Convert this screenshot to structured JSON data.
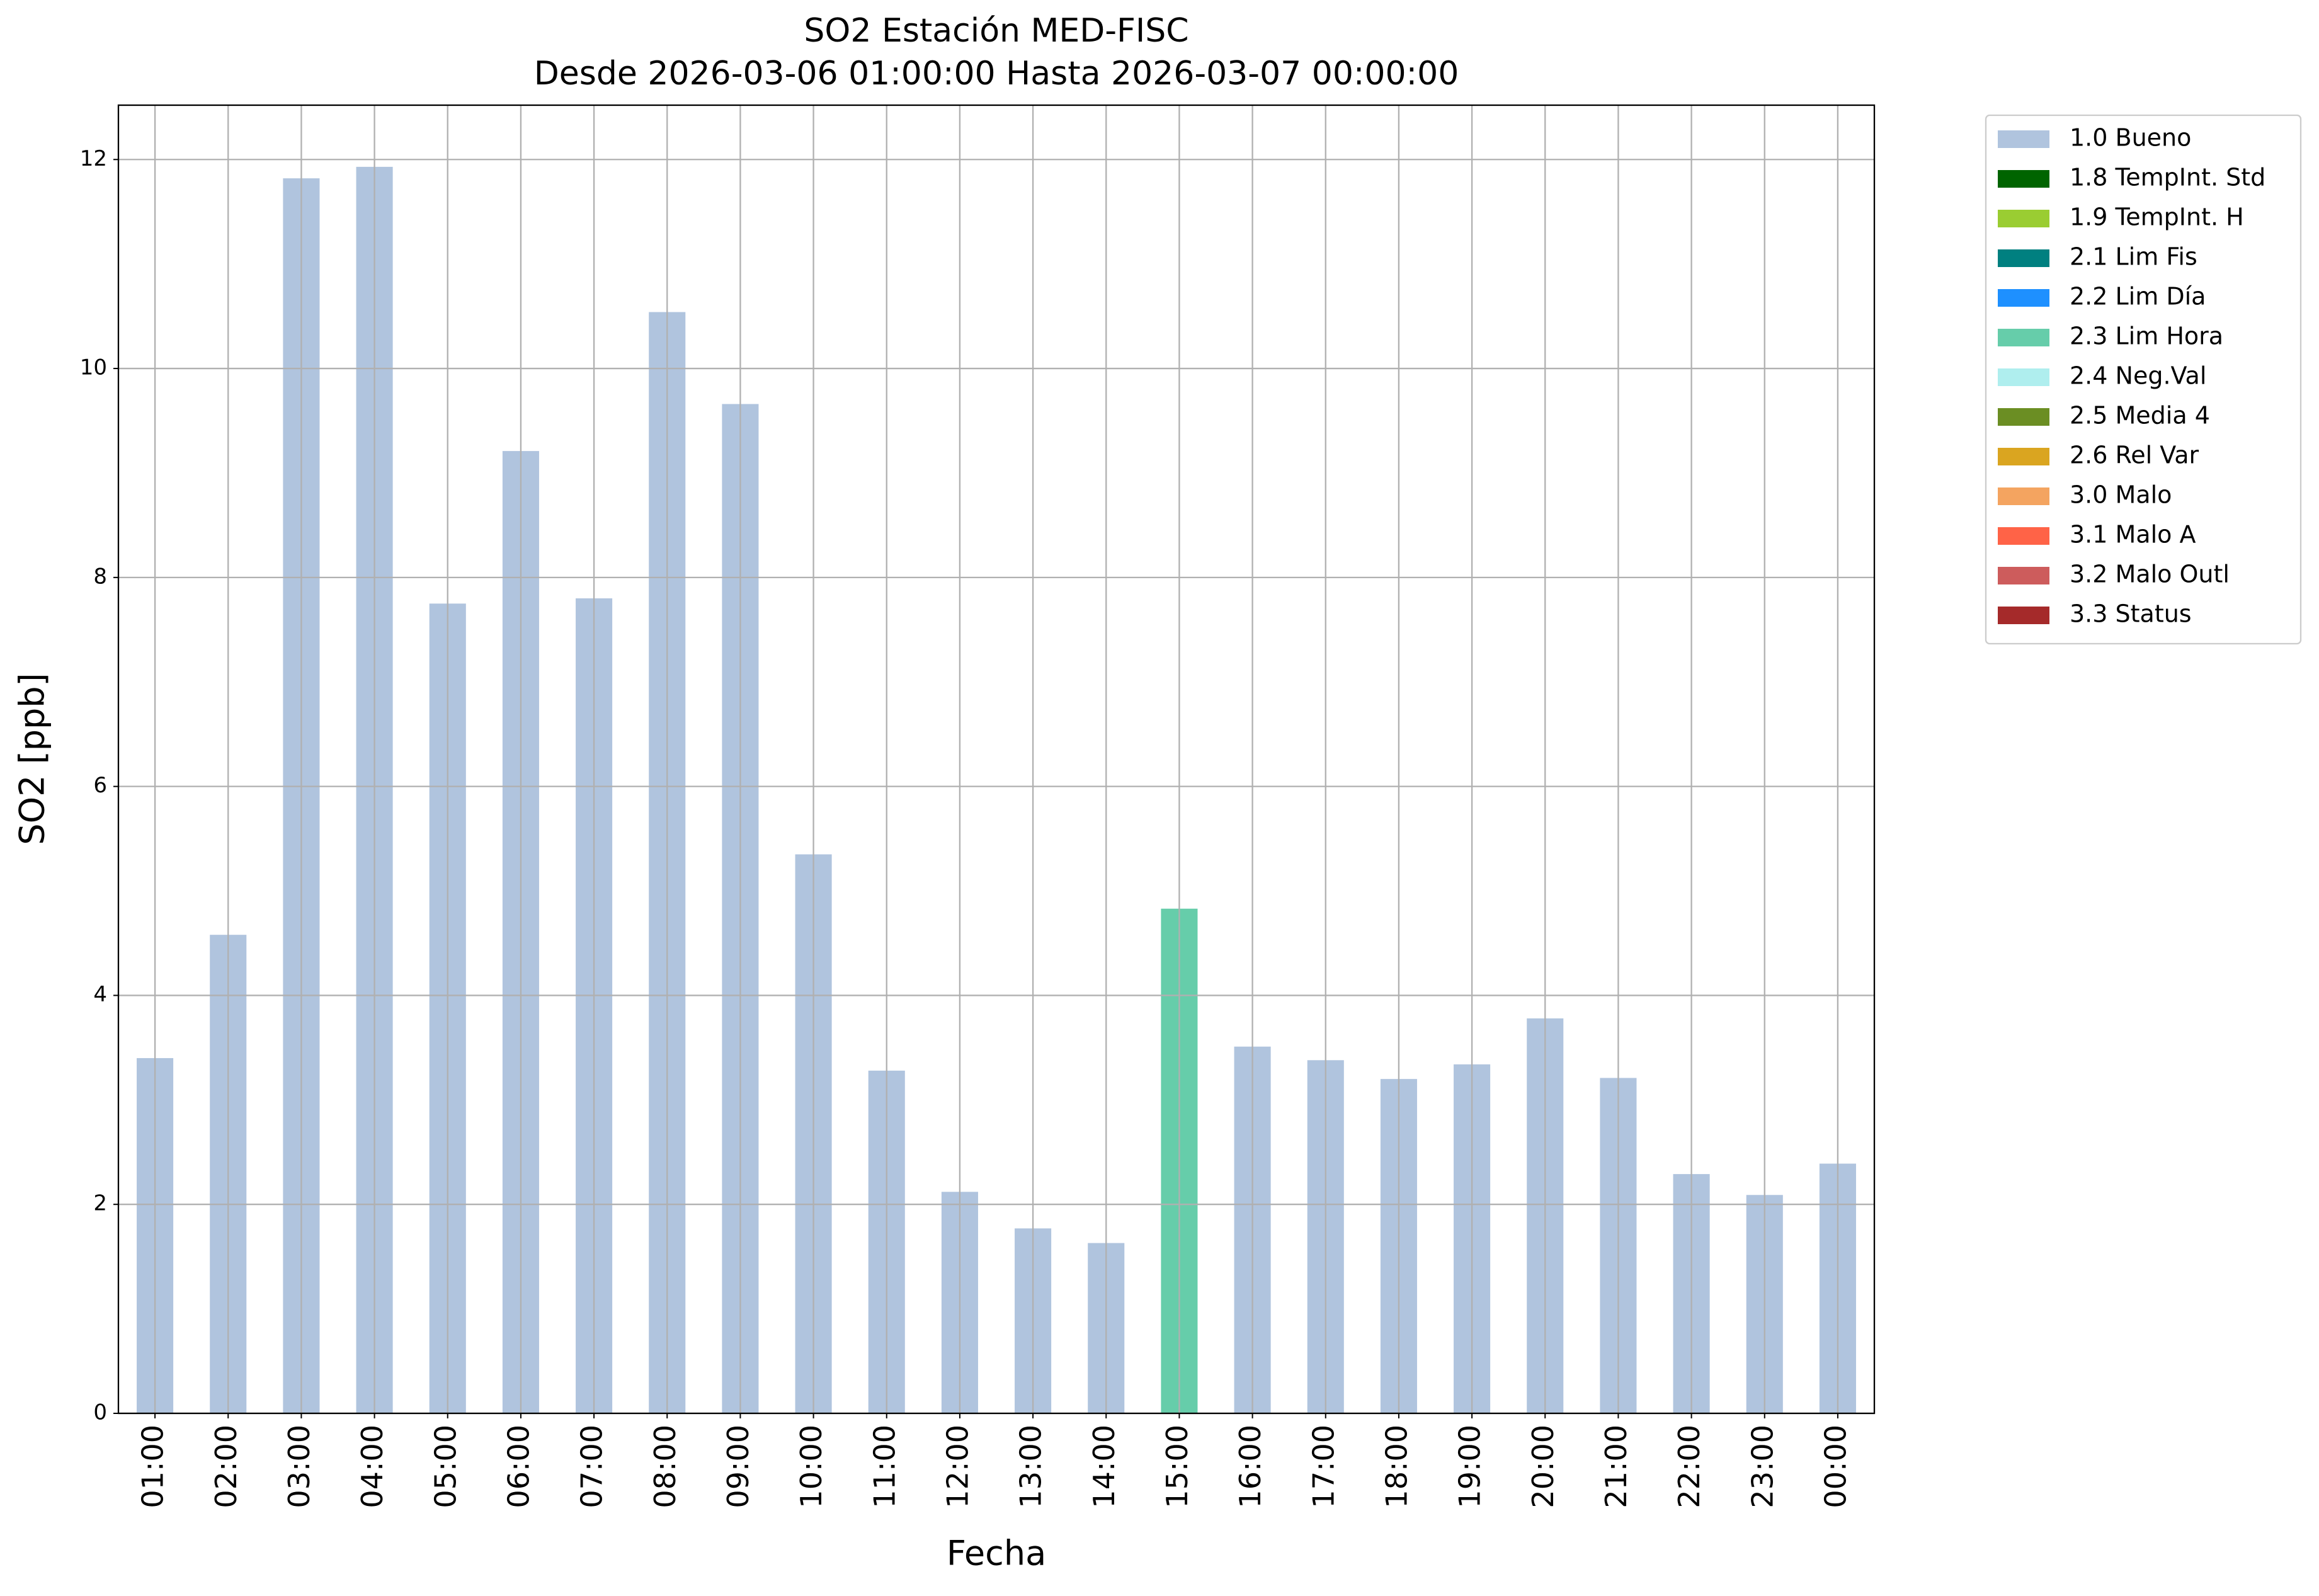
{
  "chart_data": {
    "type": "bar",
    "stacked": true,
    "title": "SO2 Estación MED-FISC",
    "subtitle": "Desde 2026-03-06 01:00:00 Hasta 2026-03-07 00:00:00",
    "x_label": "Fecha",
    "y_label": "SO2 [ppb]",
    "categories": [
      "01:00",
      "02:00",
      "03:00",
      "04:00",
      "05:00",
      "06:00",
      "07:00",
      "08:00",
      "09:00",
      "10:00",
      "11:00",
      "12:00",
      "13:00",
      "14:00",
      "15:00",
      "16:00",
      "17:00",
      "18:00",
      "19:00",
      "20:00",
      "21:00",
      "22:00",
      "23:00",
      "00:00"
    ],
    "series": [
      {
        "name": "1.0 Bueno",
        "color": "#b0c4de",
        "values": [
          3.4,
          4.58,
          11.82,
          11.93,
          7.75,
          9.21,
          7.8,
          10.54,
          9.66,
          5.35,
          3.28,
          2.12,
          1.77,
          1.63,
          null,
          3.51,
          3.38,
          3.2,
          3.34,
          3.78,
          3.21,
          2.29,
          2.09,
          2.39
        ]
      },
      {
        "name": "1.8 TempInt. Std",
        "color": "#006400",
        "values": [
          null,
          null,
          null,
          null,
          null,
          null,
          null,
          null,
          null,
          null,
          null,
          null,
          null,
          null,
          null,
          null,
          null,
          null,
          null,
          null,
          null,
          null,
          null,
          null
        ]
      },
      {
        "name": "1.9 TempInt. H",
        "color": "#9acd32",
        "values": [
          null,
          null,
          null,
          null,
          null,
          null,
          null,
          null,
          null,
          null,
          null,
          null,
          null,
          null,
          null,
          null,
          null,
          null,
          null,
          null,
          null,
          null,
          null,
          null
        ]
      },
      {
        "name": "2.1 Lim Fis",
        "color": "#008080",
        "values": [
          null,
          null,
          null,
          null,
          null,
          null,
          null,
          null,
          null,
          null,
          null,
          null,
          null,
          null,
          null,
          null,
          null,
          null,
          null,
          null,
          null,
          null,
          null,
          null
        ]
      },
      {
        "name": "2.2 Lim Día",
        "color": "#1e90ff",
        "values": [
          null,
          null,
          null,
          null,
          null,
          null,
          null,
          null,
          null,
          null,
          null,
          null,
          null,
          null,
          null,
          null,
          null,
          null,
          null,
          null,
          null,
          null,
          null,
          null
        ]
      },
      {
        "name": "2.3 Lim Hora",
        "color": "#66cdaa",
        "values": [
          null,
          null,
          null,
          null,
          null,
          null,
          null,
          null,
          null,
          null,
          null,
          null,
          null,
          null,
          4.83,
          null,
          null,
          null,
          null,
          null,
          null,
          null,
          null,
          null
        ]
      },
      {
        "name": "2.4 Neg.Val",
        "color": "#afeeee",
        "values": [
          null,
          null,
          null,
          null,
          null,
          null,
          null,
          null,
          null,
          null,
          null,
          null,
          null,
          null,
          null,
          null,
          null,
          null,
          null,
          null,
          null,
          null,
          null,
          null
        ]
      },
      {
        "name": "2.5 Media 4",
        "color": "#6b8e23",
        "values": [
          null,
          null,
          null,
          null,
          null,
          null,
          null,
          null,
          null,
          null,
          null,
          null,
          null,
          null,
          null,
          null,
          null,
          null,
          null,
          null,
          null,
          null,
          null,
          null
        ]
      },
      {
        "name": "2.6 Rel Var",
        "color": "#daa520",
        "values": [
          null,
          null,
          null,
          null,
          null,
          null,
          null,
          null,
          null,
          null,
          null,
          null,
          null,
          null,
          null,
          null,
          null,
          null,
          null,
          null,
          null,
          null,
          null,
          null
        ]
      },
      {
        "name": "3.0 Malo",
        "color": "#f4a460",
        "values": [
          null,
          null,
          null,
          null,
          null,
          null,
          null,
          null,
          null,
          null,
          null,
          null,
          null,
          null,
          null,
          null,
          null,
          null,
          null,
          null,
          null,
          null,
          null,
          null
        ]
      },
      {
        "name": "3.1 Malo A",
        "color": "#ff6347",
        "values": [
          null,
          null,
          null,
          null,
          null,
          null,
          null,
          null,
          null,
          null,
          null,
          null,
          null,
          null,
          null,
          null,
          null,
          null,
          null,
          null,
          null,
          null,
          null,
          null
        ]
      },
      {
        "name": "3.2 Malo Outl",
        "color": "#cd5c5c",
        "values": [
          null,
          null,
          null,
          null,
          null,
          null,
          null,
          null,
          null,
          null,
          null,
          null,
          null,
          null,
          null,
          null,
          null,
          null,
          null,
          null,
          null,
          null,
          null,
          null
        ]
      },
      {
        "name": "3.3 Status",
        "color": "#a52a2a",
        "values": [
          null,
          null,
          null,
          null,
          null,
          null,
          null,
          null,
          null,
          null,
          null,
          null,
          null,
          null,
          null,
          null,
          null,
          null,
          null,
          null,
          null,
          null,
          null,
          null
        ]
      }
    ],
    "ylim": [
      0,
      12.52
    ],
    "yticks": [
      0,
      2,
      4,
      6,
      8,
      10,
      12
    ],
    "grid": true,
    "legend": "outside-right"
  }
}
